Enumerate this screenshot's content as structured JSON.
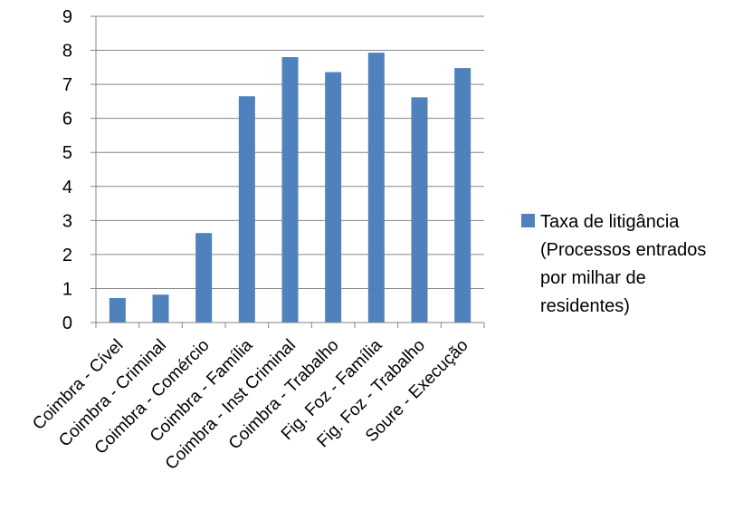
{
  "chart_data": {
    "type": "bar",
    "categories": [
      "Coimbra - Cível",
      "Coimbra - Criminal",
      "Coimbra - Comércio",
      "Coimbra - Família",
      "Coimbra - Inst Criminal",
      "Coimbra - Trabalho",
      "Fig. Foz - Família",
      "Fig. Foz - Trabalho",
      "Soure - Execução"
    ],
    "series": [
      {
        "name": "Taxa de litigância\n(Processos entrados\npor milhar de\nresidentes)",
        "values": [
          0.72,
          0.82,
          2.63,
          6.65,
          7.8,
          7.36,
          7.93,
          6.62,
          7.48
        ],
        "color": "#4F81BD"
      }
    ],
    "ylim": [
      0,
      9
    ],
    "yticks": [
      0,
      1,
      2,
      3,
      4,
      5,
      6,
      7,
      8,
      9
    ],
    "grid": true,
    "legend": "right",
    "title": "",
    "xlabel": "",
    "ylabel": ""
  }
}
